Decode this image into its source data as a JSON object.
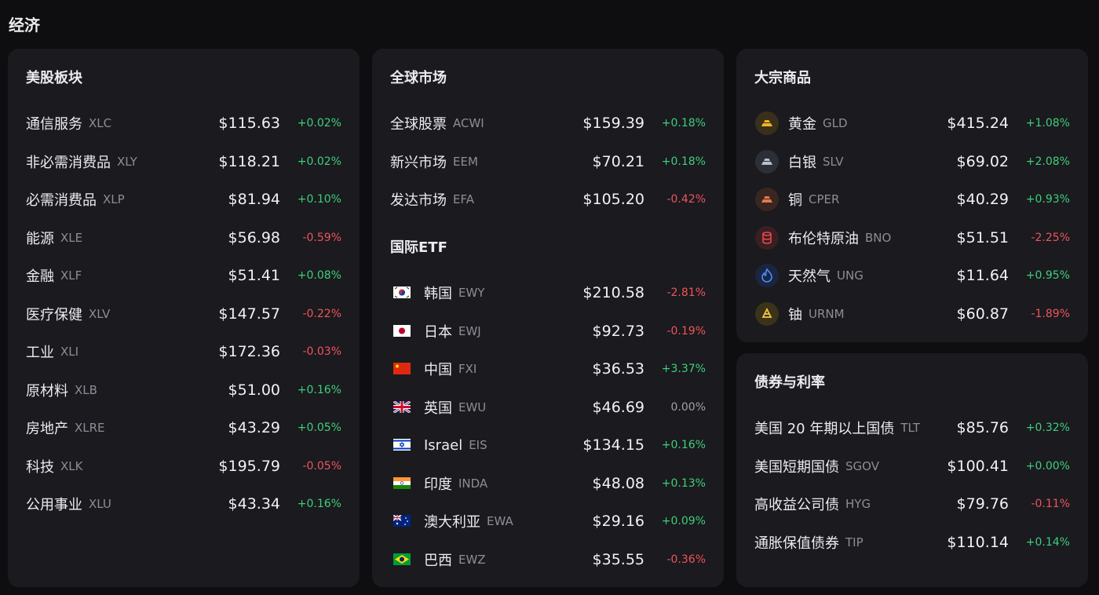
{
  "title": "经济",
  "panels": [
    {
      "title": "美股板块",
      "rows": [
        {
          "name": "通信服务",
          "ticker": "XLC",
          "price": "$115.63",
          "change": "+0.02%"
        },
        {
          "name": "非必需消费品",
          "ticker": "XLY",
          "price": "$118.21",
          "change": "+0.02%"
        },
        {
          "name": "必需消费品",
          "ticker": "XLP",
          "price": "$81.94",
          "change": "+0.10%"
        },
        {
          "name": "能源",
          "ticker": "XLE",
          "price": "$56.98",
          "change": "-0.59%"
        },
        {
          "name": "金融",
          "ticker": "XLF",
          "price": "$51.41",
          "change": "+0.08%"
        },
        {
          "name": "医疗保健",
          "ticker": "XLV",
          "price": "$147.57",
          "change": "-0.22%"
        },
        {
          "name": "工业",
          "ticker": "XLI",
          "price": "$172.36",
          "change": "-0.03%"
        },
        {
          "name": "原材料",
          "ticker": "XLB",
          "price": "$51.00",
          "change": "+0.16%"
        },
        {
          "name": "房地产",
          "ticker": "XLRE",
          "price": "$43.29",
          "change": "+0.05%"
        },
        {
          "name": "科技",
          "ticker": "XLK",
          "price": "$195.79",
          "change": "-0.05%"
        },
        {
          "name": "公用事业",
          "ticker": "XLU",
          "price": "$43.34",
          "change": "+0.16%"
        }
      ]
    },
    {
      "title": "全球市场",
      "rows": [
        {
          "name": "全球股票",
          "ticker": "ACWI",
          "price": "$159.39",
          "change": "+0.18%"
        },
        {
          "name": "新兴市场",
          "ticker": "EEM",
          "price": "$70.21",
          "change": "+0.18%"
        },
        {
          "name": "发达市场",
          "ticker": "EFA",
          "price": "$105.20",
          "change": "-0.42%"
        }
      ],
      "subtitle": "国际ETF",
      "sub_rows": [
        {
          "name": "韩国",
          "ticker": "EWY",
          "price": "$210.58",
          "change": "-2.81%"
        },
        {
          "name": "日本",
          "ticker": "EWJ",
          "price": "$92.73",
          "change": "-0.19%"
        },
        {
          "name": "中国",
          "ticker": "FXI",
          "price": "$36.53",
          "change": "+3.37%"
        },
        {
          "name": "英国",
          "ticker": "EWU",
          "price": "$46.69",
          "change": "0.00%"
        },
        {
          "name": "Israel",
          "ticker": "EIS",
          "price": "$134.15",
          "change": "+0.16%"
        },
        {
          "name": "印度",
          "ticker": "INDA",
          "price": "$48.08",
          "change": "+0.13%"
        },
        {
          "name": "澳大利亚",
          "ticker": "EWA",
          "price": "$29.16",
          "change": "+0.09%"
        },
        {
          "name": "巴西",
          "ticker": "EWZ",
          "price": "$35.55",
          "change": "-0.36%"
        }
      ]
    },
    {
      "title": "大宗商品",
      "rows": [
        {
          "name": "黄金",
          "ticker": "GLD",
          "price": "$415.24",
          "change": "+1.08%"
        },
        {
          "name": "白银",
          "ticker": "SLV",
          "price": "$69.02",
          "change": "+2.08%"
        },
        {
          "name": "铜",
          "ticker": "CPER",
          "price": "$40.29",
          "change": "+0.93%"
        },
        {
          "name": "布伦特原油",
          "ticker": "BNO",
          "price": "$51.51",
          "change": "-2.25%"
        },
        {
          "name": "天然气",
          "ticker": "UNG",
          "price": "$11.64",
          "change": "+0.95%"
        },
        {
          "name": "铀",
          "ticker": "URNM",
          "price": "$60.87",
          "change": "-1.89%"
        }
      ]
    },
    {
      "title": "债券与利率",
      "rows": [
        {
          "name": "美国 20 年期以上国债",
          "ticker": "TLT",
          "price": "$85.76",
          "change": "+0.32%"
        },
        {
          "name": "美国短期国债",
          "ticker": "SGOV",
          "price": "$100.41",
          "change": "+0.00%"
        },
        {
          "name": "高收益公司债",
          "ticker": "HYG",
          "price": "$79.76",
          "change": "-0.11%"
        },
        {
          "name": "通胀保值债券",
          "ticker": "TIP",
          "price": "$110.14",
          "change": "+0.14%"
        }
      ]
    }
  ]
}
